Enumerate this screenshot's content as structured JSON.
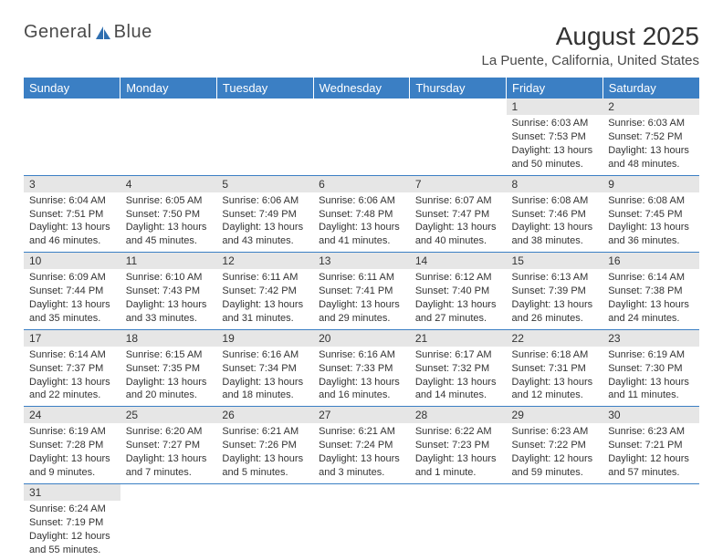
{
  "logo": {
    "word1": "General",
    "word2": "Blue"
  },
  "colors": {
    "header_bg": "#3b7fc4",
    "header_text": "#ffffff",
    "daynum_bg": "#e6e6e6",
    "rule": "#3b7fc4",
    "body_text": "#333333",
    "logo_text": "#4a4a4a"
  },
  "title": {
    "month_year": "August 2025",
    "location": "La Puente, California, United States"
  },
  "weekdays": [
    "Sunday",
    "Monday",
    "Tuesday",
    "Wednesday",
    "Thursday",
    "Friday",
    "Saturday"
  ],
  "month": {
    "first_weekday_index": 5,
    "num_days": 31
  },
  "days": {
    "1": {
      "sunrise": "6:03 AM",
      "sunset": "7:53 PM",
      "daylight": "13 hours and 50 minutes."
    },
    "2": {
      "sunrise": "6:03 AM",
      "sunset": "7:52 PM",
      "daylight": "13 hours and 48 minutes."
    },
    "3": {
      "sunrise": "6:04 AM",
      "sunset": "7:51 PM",
      "daylight": "13 hours and 46 minutes."
    },
    "4": {
      "sunrise": "6:05 AM",
      "sunset": "7:50 PM",
      "daylight": "13 hours and 45 minutes."
    },
    "5": {
      "sunrise": "6:06 AM",
      "sunset": "7:49 PM",
      "daylight": "13 hours and 43 minutes."
    },
    "6": {
      "sunrise": "6:06 AM",
      "sunset": "7:48 PM",
      "daylight": "13 hours and 41 minutes."
    },
    "7": {
      "sunrise": "6:07 AM",
      "sunset": "7:47 PM",
      "daylight": "13 hours and 40 minutes."
    },
    "8": {
      "sunrise": "6:08 AM",
      "sunset": "7:46 PM",
      "daylight": "13 hours and 38 minutes."
    },
    "9": {
      "sunrise": "6:08 AM",
      "sunset": "7:45 PM",
      "daylight": "13 hours and 36 minutes."
    },
    "10": {
      "sunrise": "6:09 AM",
      "sunset": "7:44 PM",
      "daylight": "13 hours and 35 minutes."
    },
    "11": {
      "sunrise": "6:10 AM",
      "sunset": "7:43 PM",
      "daylight": "13 hours and 33 minutes."
    },
    "12": {
      "sunrise": "6:11 AM",
      "sunset": "7:42 PM",
      "daylight": "13 hours and 31 minutes."
    },
    "13": {
      "sunrise": "6:11 AM",
      "sunset": "7:41 PM",
      "daylight": "13 hours and 29 minutes."
    },
    "14": {
      "sunrise": "6:12 AM",
      "sunset": "7:40 PM",
      "daylight": "13 hours and 27 minutes."
    },
    "15": {
      "sunrise": "6:13 AM",
      "sunset": "7:39 PM",
      "daylight": "13 hours and 26 minutes."
    },
    "16": {
      "sunrise": "6:14 AM",
      "sunset": "7:38 PM",
      "daylight": "13 hours and 24 minutes."
    },
    "17": {
      "sunrise": "6:14 AM",
      "sunset": "7:37 PM",
      "daylight": "13 hours and 22 minutes."
    },
    "18": {
      "sunrise": "6:15 AM",
      "sunset": "7:35 PM",
      "daylight": "13 hours and 20 minutes."
    },
    "19": {
      "sunrise": "6:16 AM",
      "sunset": "7:34 PM",
      "daylight": "13 hours and 18 minutes."
    },
    "20": {
      "sunrise": "6:16 AM",
      "sunset": "7:33 PM",
      "daylight": "13 hours and 16 minutes."
    },
    "21": {
      "sunrise": "6:17 AM",
      "sunset": "7:32 PM",
      "daylight": "13 hours and 14 minutes."
    },
    "22": {
      "sunrise": "6:18 AM",
      "sunset": "7:31 PM",
      "daylight": "13 hours and 12 minutes."
    },
    "23": {
      "sunrise": "6:19 AM",
      "sunset": "7:30 PM",
      "daylight": "13 hours and 11 minutes."
    },
    "24": {
      "sunrise": "6:19 AM",
      "sunset": "7:28 PM",
      "daylight": "13 hours and 9 minutes."
    },
    "25": {
      "sunrise": "6:20 AM",
      "sunset": "7:27 PM",
      "daylight": "13 hours and 7 minutes."
    },
    "26": {
      "sunrise": "6:21 AM",
      "sunset": "7:26 PM",
      "daylight": "13 hours and 5 minutes."
    },
    "27": {
      "sunrise": "6:21 AM",
      "sunset": "7:24 PM",
      "daylight": "13 hours and 3 minutes."
    },
    "28": {
      "sunrise": "6:22 AM",
      "sunset": "7:23 PM",
      "daylight": "13 hours and 1 minute."
    },
    "29": {
      "sunrise": "6:23 AM",
      "sunset": "7:22 PM",
      "daylight": "12 hours and 59 minutes."
    },
    "30": {
      "sunrise": "6:23 AM",
      "sunset": "7:21 PM",
      "daylight": "12 hours and 57 minutes."
    },
    "31": {
      "sunrise": "6:24 AM",
      "sunset": "7:19 PM",
      "daylight": "12 hours and 55 minutes."
    }
  },
  "labels": {
    "sunrise": "Sunrise:",
    "sunset": "Sunset:",
    "daylight": "Daylight:"
  }
}
